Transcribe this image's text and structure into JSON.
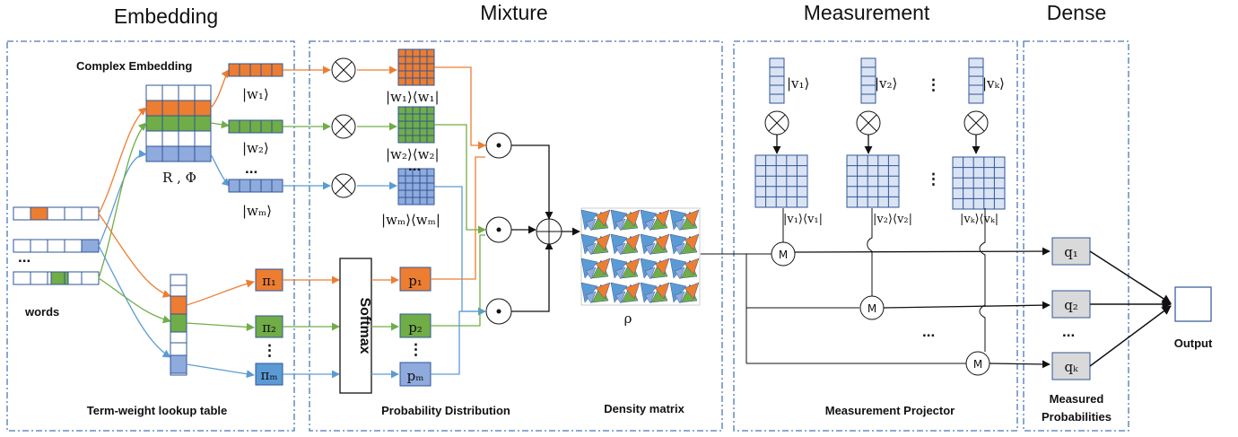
{
  "sections": {
    "embedding": "Embedding",
    "mixture": "Mixture",
    "measurement": "Measurement",
    "dense": "Dense"
  },
  "labels": {
    "complex_embedding": "Complex Embedding",
    "words": "words",
    "term_weight": "Term-weight lookup table",
    "probability_distribution": "Probability Distribution",
    "density_matrix": "Density matrix",
    "measurement_projector": "Measurement Projector",
    "measured_probabilities_1": "Measured",
    "measured_probabilities_2": "Probabilities",
    "output": "Output",
    "softmax": "Softmax",
    "r_phi": "R , Φ",
    "rho": "ρ",
    "dots": "...",
    "vdots": "⋮"
  },
  "vectors": {
    "w1": "|w₁⟩",
    "w2": "|w₂⟩",
    "wm": "|wₘ⟩",
    "w1w1": "|w₁⟩⟨w₁|",
    "w2w2": "|w₂⟩⟨w₂|",
    "wmwm": "|wₘ⟩⟨wₘ|",
    "v1": "|v₁⟩",
    "v2": "|v₂⟩",
    "vk": "|vₖ⟩",
    "v1v1": "|v₁⟩⟨v₁|",
    "v2v2": "|v₂⟩⟨v₂|",
    "vkvk": "|vₖ⟩⟨vₖ|"
  },
  "weights": {
    "pi1": "π₁",
    "pi2": "π₂",
    "pim": "πₘ",
    "p1": "p₁",
    "p2": "p₂",
    "pm": "pₘ"
  },
  "probs": {
    "q1": "q₁",
    "q2": "q₂",
    "qk": "qₖ"
  },
  "ops": {
    "tensor": "⊗",
    "dot": "⊙",
    "plus": "⊕",
    "measure": "M"
  },
  "colors": {
    "orange": "#ed7d31",
    "green": "#70ad47",
    "blue": "#8faadc",
    "blue_dark": "#5b9bd5",
    "gray": "#dae3f3",
    "panel": "#4a78b5"
  }
}
